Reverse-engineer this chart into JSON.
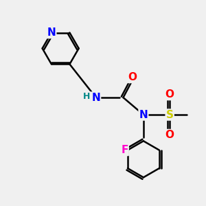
{
  "background_color": "#f0f0f0",
  "atom_colors": {
    "N": "#0000ff",
    "O": "#ff0000",
    "S": "#cccc00",
    "F": "#ff00cc",
    "H": "#008888",
    "C": "#000000"
  },
  "bond_color": "#000000",
  "bond_width": 1.8,
  "font_size_atom": 11
}
